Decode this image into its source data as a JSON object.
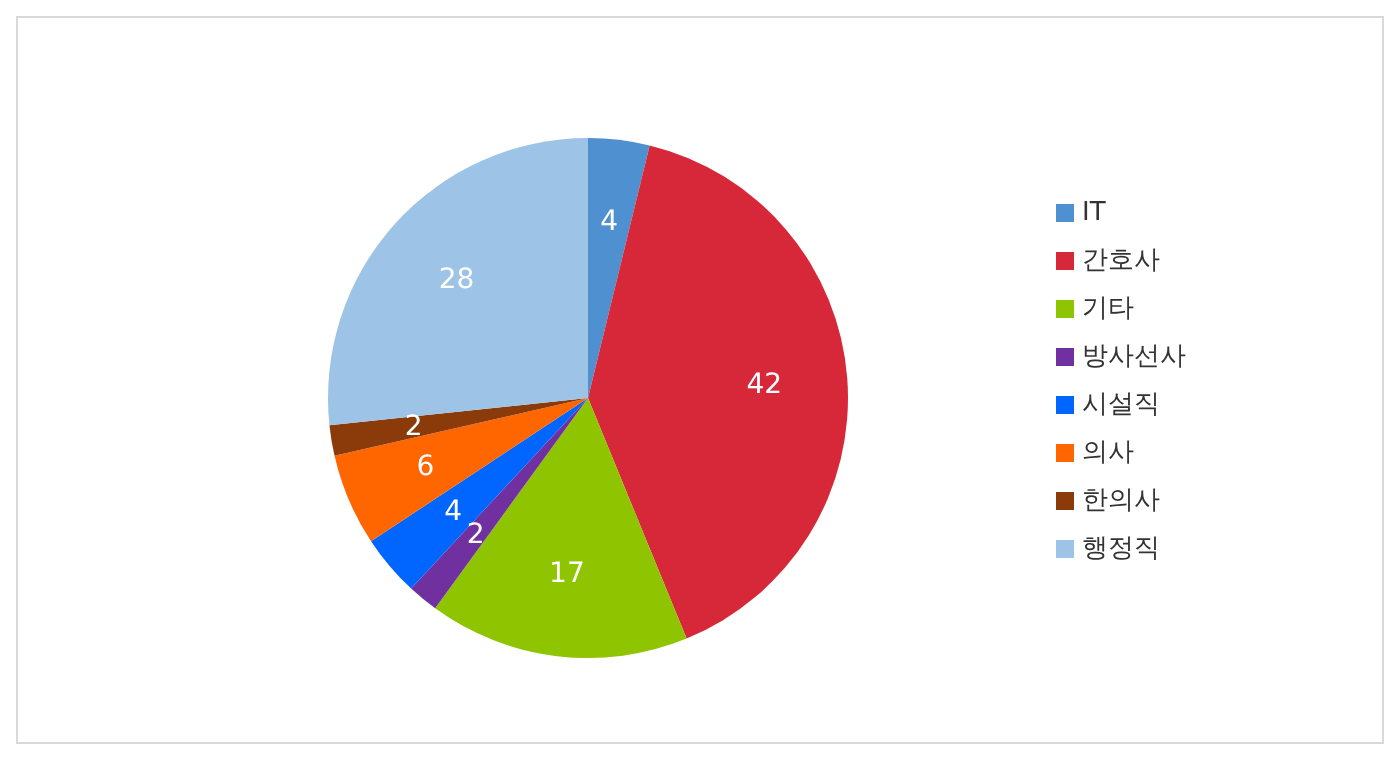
{
  "chart_data": {
    "type": "pie",
    "categories": [
      "IT",
      "간호사",
      "기타",
      "방사선사",
      "시설직",
      "의사",
      "한의사",
      "행정직"
    ],
    "values": [
      4,
      42,
      17,
      2,
      4,
      6,
      2,
      28
    ],
    "colors": [
      "#4f90d0",
      "#d62839",
      "#8fc400",
      "#7030a0",
      "#0066ff",
      "#ff6600",
      "#8b3a0a",
      "#9dc3e6"
    ],
    "data_labels": true,
    "legend": "right"
  }
}
